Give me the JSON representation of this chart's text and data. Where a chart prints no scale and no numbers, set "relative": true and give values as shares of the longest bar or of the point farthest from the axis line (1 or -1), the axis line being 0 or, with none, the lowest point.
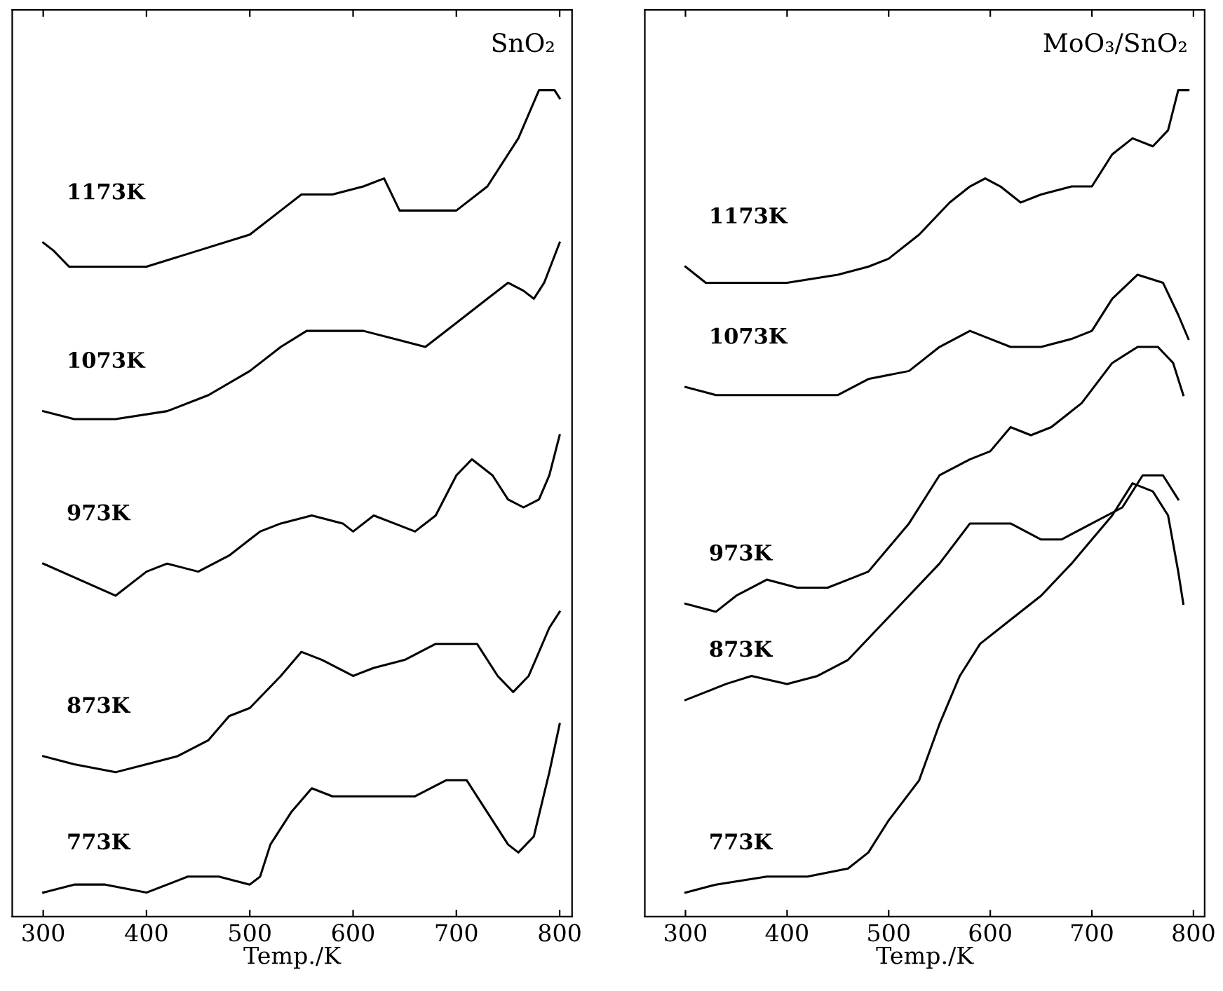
{
  "chart_data": [
    {
      "type": "line",
      "title": "SnO₂",
      "xlabel": "Temp./K",
      "relative": true,
      "xlim": [
        270,
        812
      ],
      "xticks": [
        300,
        400,
        500,
        600,
        700,
        800
      ],
      "tick_labels": "x",
      "grid": false,
      "legend": false,
      "series": [
        {
          "name": "1173K",
          "color": "#000000",
          "x": [
            300,
            310,
            325,
            350,
            400,
            450,
            500,
            530,
            550,
            580,
            610,
            630,
            645,
            670,
            700,
            730,
            760,
            780,
            795,
            800
          ],
          "values": [
            0.81,
            0.8,
            0.78,
            0.78,
            0.78,
            0.8,
            0.82,
            0.85,
            0.87,
            0.87,
            0.88,
            0.89,
            0.85,
            0.85,
            0.85,
            0.88,
            0.94,
            1.0,
            1.0,
            0.99
          ]
        },
        {
          "name": "1073K",
          "color": "#000000",
          "x": [
            300,
            330,
            370,
            420,
            460,
            500,
            530,
            555,
            580,
            610,
            640,
            670,
            700,
            730,
            750,
            765,
            775,
            785,
            800
          ],
          "values": [
            0.6,
            0.59,
            0.59,
            0.6,
            0.62,
            0.65,
            0.68,
            0.7,
            0.7,
            0.7,
            0.69,
            0.68,
            0.71,
            0.74,
            0.76,
            0.75,
            0.74,
            0.76,
            0.81
          ]
        },
        {
          "name": "973K",
          "color": "#000000",
          "x": [
            300,
            370,
            400,
            420,
            450,
            480,
            500,
            510,
            530,
            560,
            590,
            600,
            620,
            640,
            660,
            680,
            700,
            715,
            735,
            750,
            765,
            780,
            790,
            800
          ],
          "values": [
            0.41,
            0.37,
            0.4,
            0.41,
            0.4,
            0.42,
            0.44,
            0.45,
            0.46,
            0.47,
            0.46,
            0.45,
            0.47,
            0.46,
            0.45,
            0.47,
            0.52,
            0.54,
            0.52,
            0.49,
            0.48,
            0.49,
            0.52,
            0.57
          ]
        },
        {
          "name": "873K",
          "color": "#000000",
          "x": [
            300,
            330,
            370,
            400,
            430,
            460,
            480,
            500,
            530,
            550,
            570,
            600,
            620,
            650,
            680,
            700,
            720,
            740,
            755,
            770,
            790,
            800
          ],
          "values": [
            0.17,
            0.16,
            0.15,
            0.16,
            0.17,
            0.19,
            0.22,
            0.23,
            0.27,
            0.3,
            0.29,
            0.27,
            0.28,
            0.29,
            0.31,
            0.31,
            0.31,
            0.27,
            0.25,
            0.27,
            0.33,
            0.35
          ]
        },
        {
          "name": "773K",
          "color": "#000000",
          "x": [
            300,
            330,
            360,
            400,
            440,
            470,
            500,
            510,
            520,
            540,
            560,
            580,
            620,
            660,
            690,
            710,
            730,
            750,
            760,
            775,
            790,
            800
          ],
          "values": [
            0.0,
            0.01,
            0.01,
            0.0,
            0.02,
            0.02,
            0.01,
            0.02,
            0.06,
            0.1,
            0.13,
            0.12,
            0.12,
            0.12,
            0.14,
            0.14,
            0.1,
            0.06,
            0.05,
            0.07,
            0.15,
            0.21
          ]
        }
      ]
    },
    {
      "type": "line",
      "title": "MoO₃/SnO₂",
      "xlabel": "Temp./K",
      "relative": true,
      "xlim": [
        260,
        811
      ],
      "xticks": [
        300,
        400,
        500,
        600,
        700,
        800
      ],
      "tick_labels": "x",
      "grid": false,
      "legend": false,
      "series": [
        {
          "name": "1173K",
          "color": "#000000",
          "x": [
            300,
            310,
            320,
            340,
            400,
            450,
            480,
            500,
            530,
            560,
            580,
            595,
            610,
            630,
            650,
            680,
            700,
            720,
            740,
            760,
            775,
            785,
            795
          ],
          "values": [
            0.78,
            0.77,
            0.76,
            0.76,
            0.76,
            0.77,
            0.78,
            0.79,
            0.82,
            0.86,
            0.88,
            0.89,
            0.88,
            0.86,
            0.87,
            0.88,
            0.88,
            0.92,
            0.94,
            0.93,
            0.95,
            1.0,
            1.0
          ]
        },
        {
          "name": "1073K",
          "color": "#000000",
          "x": [
            300,
            330,
            370,
            420,
            450,
            480,
            520,
            550,
            580,
            600,
            620,
            650,
            680,
            700,
            720,
            745,
            770,
            785,
            795
          ],
          "values": [
            0.63,
            0.62,
            0.62,
            0.62,
            0.62,
            0.64,
            0.65,
            0.68,
            0.7,
            0.69,
            0.68,
            0.68,
            0.69,
            0.7,
            0.74,
            0.77,
            0.76,
            0.72,
            0.69
          ]
        },
        {
          "name": "973K",
          "color": "#000000",
          "x": [
            300,
            330,
            350,
            380,
            410,
            440,
            460,
            480,
            500,
            520,
            550,
            580,
            600,
            620,
            640,
            660,
            690,
            720,
            745,
            765,
            780,
            790
          ],
          "values": [
            0.36,
            0.35,
            0.37,
            0.39,
            0.38,
            0.38,
            0.39,
            0.4,
            0.43,
            0.46,
            0.52,
            0.54,
            0.55,
            0.58,
            0.57,
            0.58,
            0.61,
            0.66,
            0.68,
            0.68,
            0.66,
            0.62
          ]
        },
        {
          "name": "873K",
          "color": "#000000",
          "x": [
            300,
            340,
            365,
            400,
            430,
            460,
            490,
            520,
            550,
            580,
            600,
            620,
            650,
            670,
            700,
            730,
            750,
            770,
            785
          ],
          "values": [
            0.24,
            0.26,
            0.27,
            0.26,
            0.27,
            0.29,
            0.33,
            0.37,
            0.41,
            0.46,
            0.46,
            0.46,
            0.44,
            0.44,
            0.46,
            0.48,
            0.52,
            0.52,
            0.49
          ]
        },
        {
          "name": "773K",
          "color": "#000000",
          "x": [
            300,
            330,
            380,
            420,
            460,
            480,
            500,
            530,
            550,
            570,
            590,
            620,
            650,
            680,
            700,
            720,
            740,
            760,
            775,
            785,
            790
          ],
          "values": [
            0.0,
            0.01,
            0.02,
            0.02,
            0.03,
            0.05,
            0.09,
            0.14,
            0.21,
            0.27,
            0.31,
            0.34,
            0.37,
            0.41,
            0.44,
            0.47,
            0.51,
            0.5,
            0.47,
            0.4,
            0.36
          ]
        }
      ]
    }
  ]
}
